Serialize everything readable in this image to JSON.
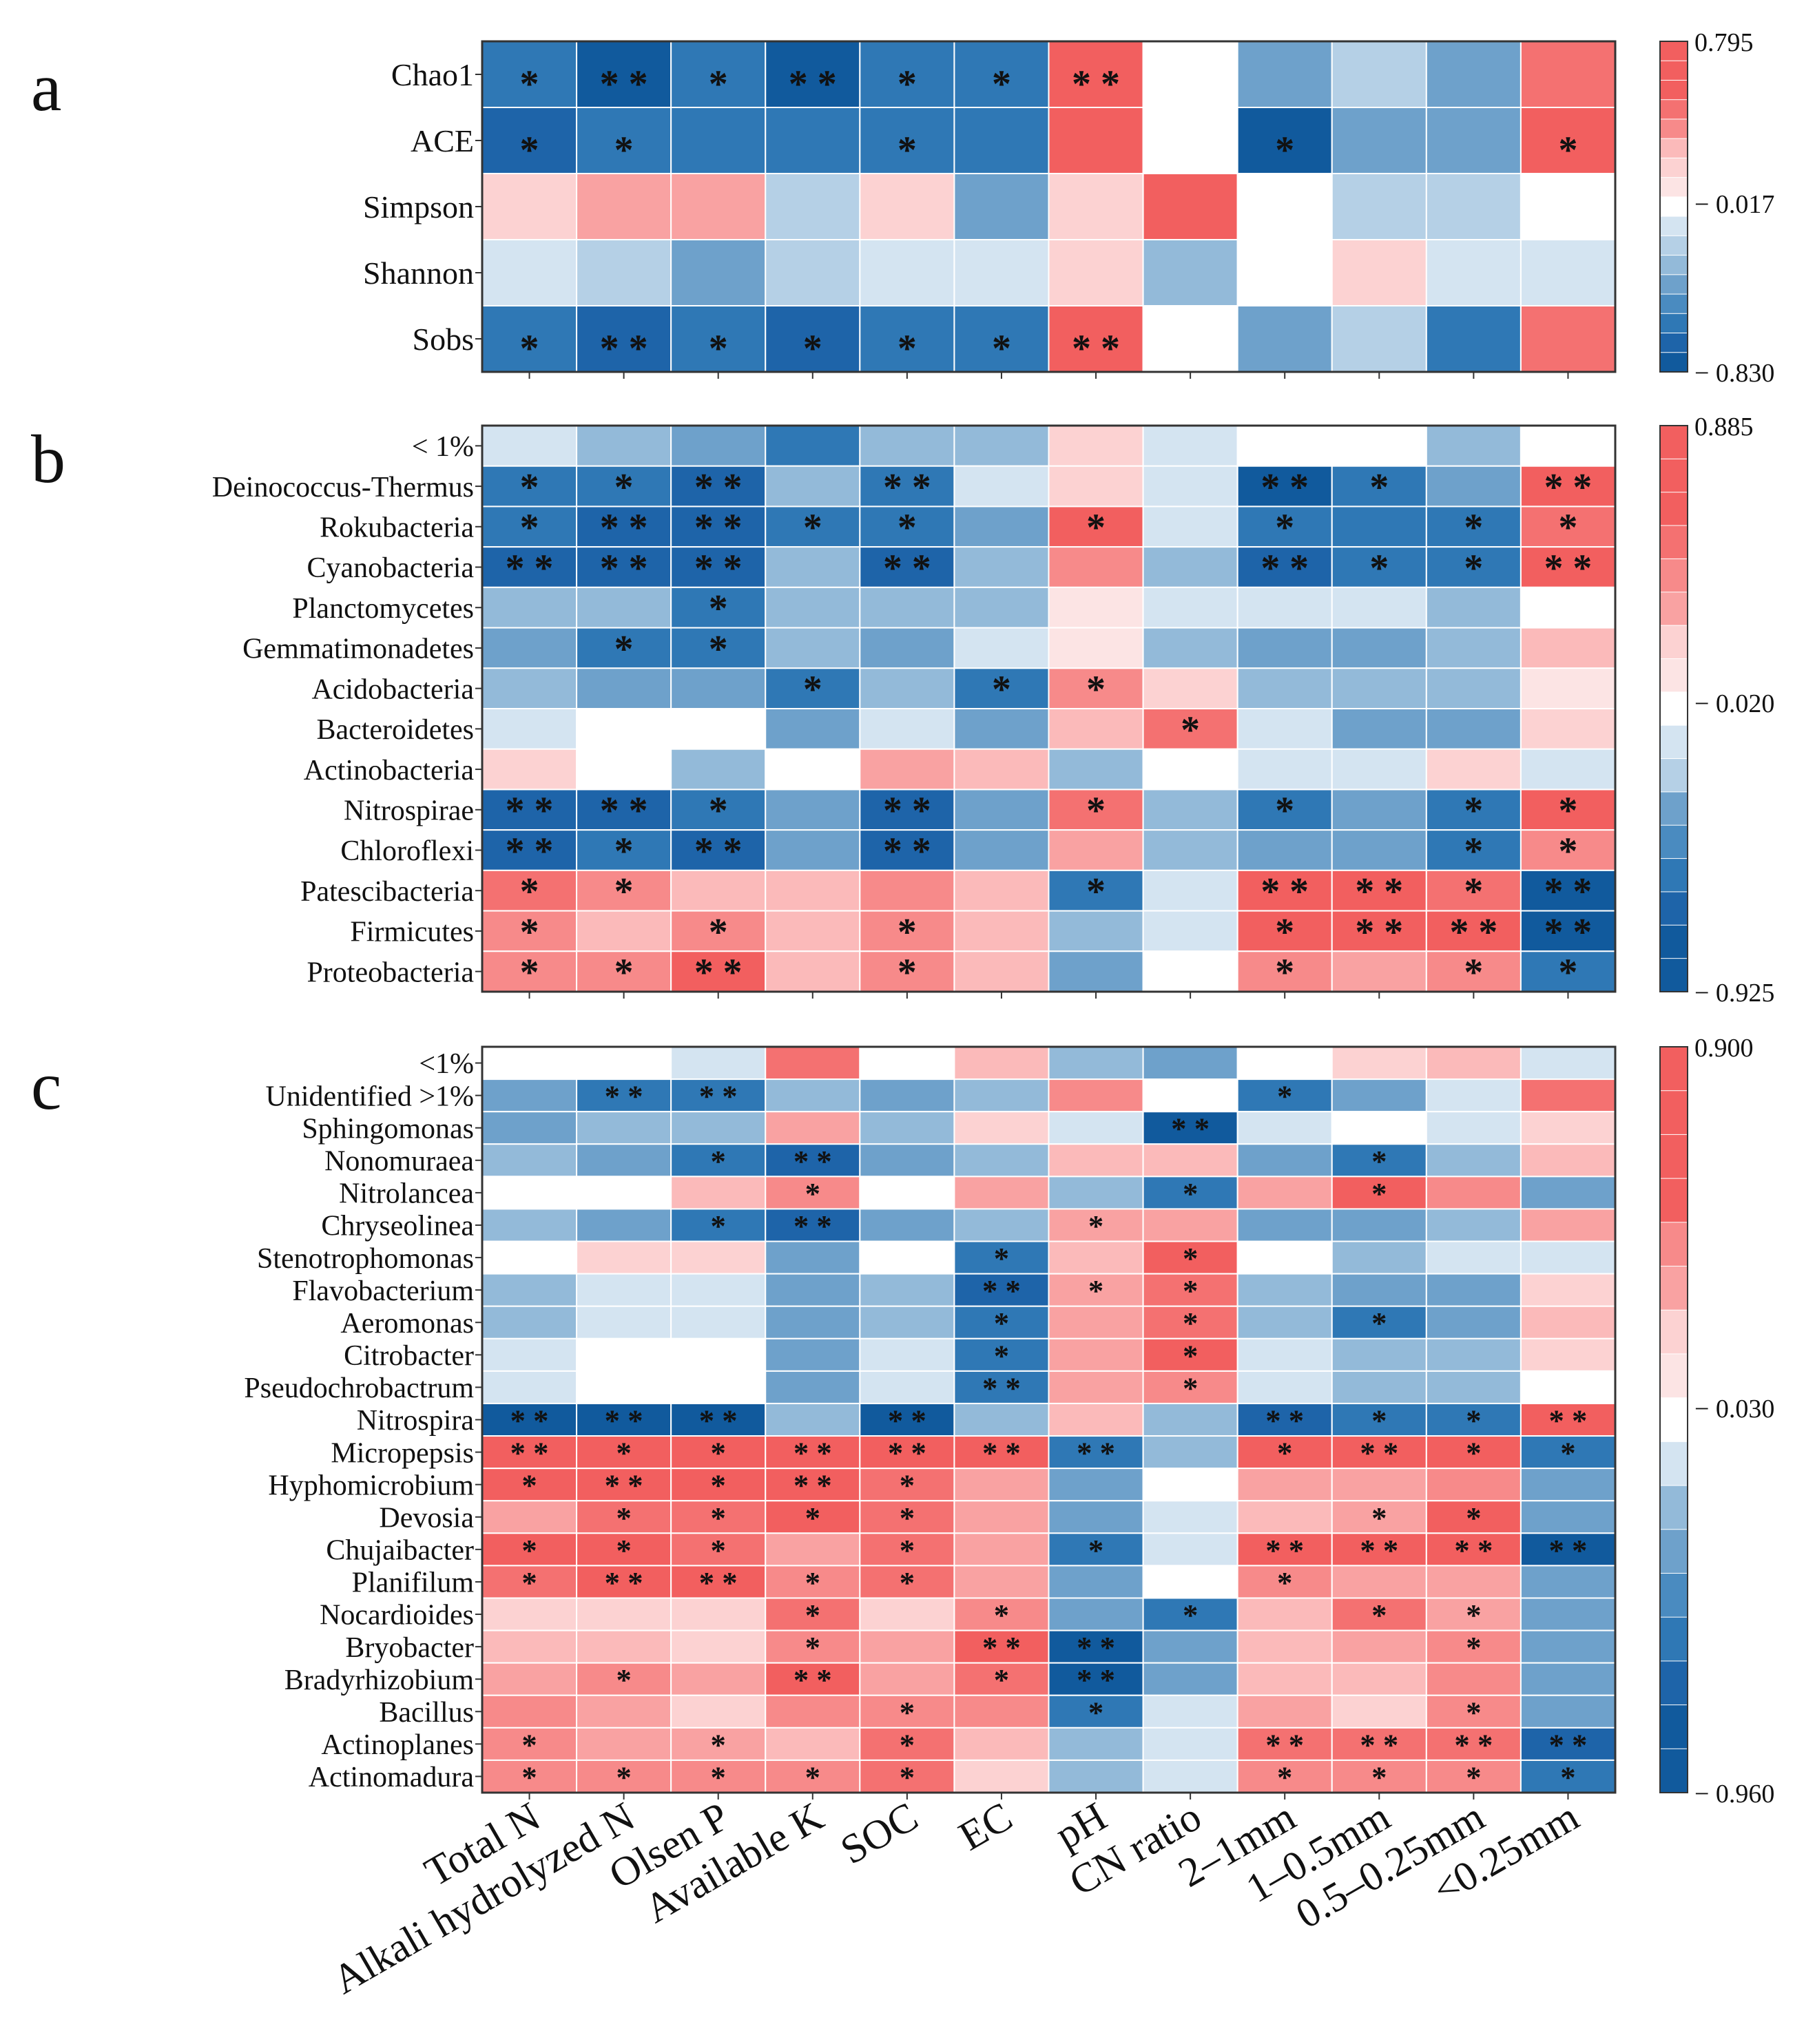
{
  "columns": [
    "Total N",
    "Alkali hydrolyzed N",
    "Olsen P",
    "Available K",
    "SOC",
    "EC",
    "pH",
    "CN ratio",
    "2–1mm",
    "1–0.5mm",
    "0.5–0.25mm",
    "<0.25mm"
  ],
  "palette": {
    "pos": [
      "#fce4e4",
      "#fcd2d2",
      "#fbbaba",
      "#f9a2a2",
      "#f78a8a",
      "#f47171",
      "#f25f5f"
    ],
    "neg": [
      "#d4e4f1",
      "#b5d0e6",
      "#93bad9",
      "#6ea1cb",
      "#4a8bc0",
      "#2f78b5",
      "#1e64a9",
      "#115a9d"
    ],
    "zero": "#ffffff"
  },
  "chart_data": [
    {
      "type": "heatmap",
      "panel_label": "a",
      "rows": [
        "Chao1",
        "ACE",
        "Simpson",
        "Shannon",
        "Sobs"
      ],
      "values": [
        [
          -0.62,
          -0.78,
          -0.62,
          -0.78,
          -0.62,
          -0.62,
          0.55,
          0.0,
          -0.4,
          -0.22,
          -0.4,
          0.45
        ],
        [
          -0.7,
          -0.55,
          -0.55,
          -0.55,
          -0.62,
          -0.55,
          0.62,
          0.0,
          -0.78,
          -0.4,
          -0.4,
          0.62
        ],
        [
          0.15,
          0.3,
          0.3,
          -0.22,
          0.15,
          -0.4,
          0.15,
          0.65,
          0.0,
          -0.22,
          -0.22,
          0.0
        ],
        [
          -0.08,
          -0.22,
          -0.4,
          -0.22,
          -0.08,
          -0.08,
          0.15,
          -0.3,
          0.0,
          0.15,
          -0.08,
          -0.08
        ],
        [
          -0.62,
          -0.7,
          -0.62,
          -0.7,
          -0.62,
          -0.62,
          0.62,
          0.0,
          -0.4,
          -0.22,
          -0.55,
          0.45
        ]
      ],
      "stars": [
        [
          "*",
          "**",
          "*",
          "**",
          "*",
          "*",
          "**",
          "",
          "",
          "",
          "",
          ""
        ],
        [
          "*",
          "*",
          "",
          "",
          "*",
          "",
          "",
          "",
          "*",
          "",
          "",
          "*"
        ],
        [
          "",
          "",
          "",
          "",
          "",
          "",
          "",
          "",
          "",
          "",
          "",
          ""
        ],
        [
          "",
          "",
          "",
          "",
          "",
          "",
          "",
          "",
          "",
          "",
          "",
          ""
        ],
        [
          "*",
          "**",
          "*",
          "*",
          "*",
          "*",
          "**",
          "",
          "",
          "",
          "",
          ""
        ]
      ],
      "legend": {
        "max_label": "0.795",
        "mid_label": "− 0.017",
        "min_label": "− 0.830",
        "max": 0.795,
        "min": -0.83
      }
    },
    {
      "type": "heatmap",
      "panel_label": "b",
      "rows": [
        "< 1%",
        "Deinococcus-Thermus",
        "Rokubacteria",
        "Cyanobacteria",
        "Planctomycetes",
        "Gemmatimonadetes",
        "Acidobacteria",
        "Bacteroidetes",
        "Actinobacteria",
        "Nitrospirae",
        "Chloroflexi",
        "Patescibacteria",
        "Firmicutes",
        "Proteobacteria"
      ],
      "values": [
        [
          -0.1,
          -0.25,
          -0.4,
          -0.55,
          -0.25,
          -0.25,
          0.15,
          -0.1,
          0.0,
          0.0,
          -0.25,
          0.0
        ],
        [
          -0.62,
          -0.62,
          -0.7,
          -0.25,
          -0.62,
          -0.1,
          0.15,
          -0.1,
          -0.78,
          -0.62,
          -0.4,
          0.55
        ],
        [
          -0.62,
          -0.7,
          -0.7,
          -0.55,
          -0.62,
          -0.4,
          0.55,
          -0.1,
          -0.62,
          -0.55,
          -0.62,
          0.45
        ],
        [
          -0.7,
          -0.7,
          -0.7,
          -0.25,
          -0.7,
          -0.25,
          0.4,
          -0.25,
          -0.7,
          -0.62,
          -0.62,
          0.55
        ],
        [
          -0.25,
          -0.25,
          -0.55,
          -0.25,
          -0.25,
          -0.25,
          0.1,
          -0.1,
          -0.1,
          -0.1,
          -0.25,
          0.0
        ],
        [
          -0.4,
          -0.55,
          -0.55,
          -0.25,
          -0.4,
          -0.1,
          0.1,
          -0.25,
          -0.4,
          -0.4,
          -0.25,
          0.25
        ],
        [
          -0.25,
          -0.4,
          -0.4,
          -0.55,
          -0.25,
          -0.62,
          0.4,
          0.15,
          -0.25,
          -0.25,
          -0.25,
          0.1
        ],
        [
          -0.1,
          0.0,
          0.0,
          -0.4,
          -0.1,
          -0.4,
          0.25,
          0.45,
          -0.1,
          -0.4,
          -0.4,
          0.15
        ],
        [
          0.15,
          0.0,
          -0.25,
          0.0,
          0.3,
          0.25,
          -0.25,
          0.0,
          -0.1,
          -0.1,
          0.15,
          -0.1
        ],
        [
          -0.7,
          -0.7,
          -0.62,
          -0.4,
          -0.7,
          -0.4,
          0.45,
          -0.25,
          -0.55,
          -0.4,
          -0.55,
          0.55
        ],
        [
          -0.7,
          -0.62,
          -0.7,
          -0.4,
          -0.7,
          -0.4,
          0.3,
          -0.25,
          -0.4,
          -0.4,
          -0.55,
          0.4
        ],
        [
          0.45,
          0.4,
          0.25,
          0.25,
          0.4,
          0.25,
          -0.55,
          -0.1,
          0.55,
          0.55,
          0.45,
          -0.78
        ],
        [
          0.4,
          0.25,
          0.4,
          0.25,
          0.4,
          0.25,
          -0.25,
          -0.1,
          0.55,
          0.55,
          0.55,
          -0.78
        ],
        [
          0.4,
          0.4,
          0.55,
          0.25,
          0.4,
          0.25,
          -0.4,
          0.0,
          0.4,
          0.3,
          0.4,
          -0.62
        ]
      ],
      "stars": [
        [
          "",
          "",
          "",
          "",
          "",
          "",
          "",
          "",
          "",
          "",
          "",
          ""
        ],
        [
          "*",
          "*",
          "**",
          "",
          "**",
          "",
          "",
          "",
          "**",
          "*",
          "",
          "**"
        ],
        [
          "*",
          "**",
          "**",
          "*",
          "*",
          "",
          "*",
          "",
          "*",
          "",
          "*",
          "*"
        ],
        [
          "**",
          "**",
          "**",
          "",
          "**",
          "",
          "",
          "",
          "**",
          "*",
          "*",
          "**"
        ],
        [
          "",
          "",
          "*",
          "",
          "",
          "",
          "",
          "",
          "",
          "",
          "",
          ""
        ],
        [
          "",
          "*",
          "*",
          "",
          "",
          "",
          "",
          "",
          "",
          "",
          "",
          ""
        ],
        [
          "",
          "",
          "",
          "*",
          "",
          "*",
          "*",
          "",
          "",
          "",
          "",
          ""
        ],
        [
          "",
          "",
          "",
          "",
          "",
          "",
          "",
          "*",
          "",
          "",
          "",
          ""
        ],
        [
          "",
          "",
          "",
          "",
          "",
          "",
          "",
          "",
          "",
          "",
          "",
          ""
        ],
        [
          "**",
          "**",
          "*",
          "",
          "**",
          "",
          "*",
          "",
          "*",
          "",
          "*",
          "*"
        ],
        [
          "**",
          "*",
          "**",
          "",
          "**",
          "",
          "",
          "",
          "",
          "",
          "*",
          "*"
        ],
        [
          "*",
          "*",
          "",
          "",
          "",
          "",
          "*",
          "",
          "**",
          "**",
          "*",
          "**"
        ],
        [
          "*",
          "",
          "*",
          "",
          "*",
          "",
          "",
          "",
          "*",
          "**",
          "**",
          "**"
        ],
        [
          "*",
          "*",
          "**",
          "",
          "*",
          "",
          "",
          "",
          "*",
          "",
          "*",
          "*"
        ]
      ],
      "legend": {
        "max_label": "0.885",
        "mid_label": "− 0.020",
        "min_label": "− 0.925",
        "max": 0.885,
        "min": -0.925
      }
    },
    {
      "type": "heatmap",
      "panel_label": "c",
      "rows": [
        "<1%",
        "Unidentified >1%",
        "Sphingomonas",
        "Nonomuraea",
        "Nitrolancea",
        "Chryseolinea",
        "Stenotrophomonas",
        "Flavobacterium",
        "Aeromonas",
        "Citrobacter",
        "Pseudochrobactrum",
        "Nitrospira",
        "Micropepsis",
        "Hyphomicrobium",
        "Devosia",
        "Chujaibacter",
        "Planifilum",
        "Nocardioides",
        "Bryobacter",
        "Bradyrhizobium",
        "Bacillus",
        "Actinoplanes",
        "Actinomadura"
      ],
      "values": [
        [
          0.0,
          0.0,
          -0.1,
          0.45,
          0.0,
          0.25,
          -0.25,
          -0.4,
          0.0,
          0.15,
          0.25,
          -0.1
        ],
        [
          -0.4,
          -0.62,
          -0.62,
          -0.25,
          -0.4,
          -0.25,
          0.4,
          0.0,
          -0.55,
          -0.4,
          -0.1,
          0.45
        ],
        [
          -0.4,
          -0.25,
          -0.25,
          0.3,
          -0.25,
          0.15,
          -0.1,
          -0.78,
          -0.1,
          0.0,
          -0.1,
          0.15
        ],
        [
          -0.25,
          -0.4,
          -0.55,
          -0.7,
          -0.4,
          -0.25,
          0.25,
          0.25,
          -0.4,
          -0.55,
          -0.25,
          0.25
        ],
        [
          0.0,
          0.0,
          0.25,
          0.4,
          0.0,
          0.3,
          -0.25,
          -0.55,
          0.3,
          0.55,
          0.4,
          -0.4
        ],
        [
          -0.25,
          -0.4,
          -0.55,
          -0.7,
          -0.4,
          -0.25,
          0.3,
          0.3,
          -0.4,
          -0.4,
          -0.25,
          0.3
        ],
        [
          0.0,
          0.15,
          0.15,
          -0.4,
          0.0,
          -0.62,
          0.25,
          0.55,
          0.0,
          -0.25,
          -0.1,
          -0.1
        ],
        [
          -0.25,
          -0.1,
          -0.1,
          -0.4,
          -0.25,
          -0.7,
          0.3,
          0.45,
          -0.25,
          -0.4,
          -0.4,
          0.15
        ],
        [
          -0.25,
          -0.1,
          -0.1,
          -0.4,
          -0.25,
          -0.62,
          0.3,
          0.45,
          -0.25,
          -0.55,
          -0.4,
          0.25
        ],
        [
          -0.1,
          0.0,
          0.0,
          -0.4,
          -0.1,
          -0.62,
          0.3,
          0.55,
          -0.1,
          -0.25,
          -0.25,
          0.15
        ],
        [
          -0.1,
          0.0,
          0.0,
          -0.4,
          -0.1,
          -0.62,
          0.3,
          0.4,
          -0.1,
          -0.25,
          -0.25,
          0.0
        ],
        [
          -0.78,
          -0.78,
          -0.78,
          -0.25,
          -0.78,
          -0.25,
          0.25,
          -0.25,
          -0.7,
          -0.62,
          -0.62,
          0.55
        ],
        [
          0.55,
          0.55,
          0.55,
          0.55,
          0.55,
          0.55,
          -0.62,
          -0.25,
          0.55,
          0.55,
          0.55,
          -0.62
        ],
        [
          0.55,
          0.55,
          0.55,
          0.55,
          0.45,
          0.3,
          -0.4,
          0.0,
          0.3,
          0.3,
          0.4,
          -0.4
        ],
        [
          0.3,
          0.45,
          0.45,
          0.55,
          0.45,
          0.3,
          -0.4,
          -0.1,
          0.25,
          0.3,
          0.55,
          -0.4
        ],
        [
          0.55,
          0.55,
          0.45,
          0.3,
          0.45,
          0.3,
          -0.55,
          -0.1,
          0.55,
          0.55,
          0.55,
          -0.78
        ],
        [
          0.45,
          0.55,
          0.55,
          0.4,
          0.45,
          0.3,
          -0.4,
          0.0,
          0.4,
          0.3,
          0.3,
          -0.4
        ],
        [
          0.15,
          0.15,
          0.15,
          0.45,
          0.15,
          0.4,
          -0.4,
          -0.62,
          0.25,
          0.45,
          0.3,
          -0.4
        ],
        [
          0.25,
          0.25,
          0.15,
          0.4,
          0.3,
          0.55,
          -0.78,
          -0.4,
          0.25,
          0.3,
          0.4,
          -0.4
        ],
        [
          0.3,
          0.4,
          0.3,
          0.55,
          0.3,
          0.45,
          -0.78,
          -0.4,
          0.25,
          0.25,
          0.4,
          -0.4
        ],
        [
          0.4,
          0.3,
          0.15,
          0.4,
          0.4,
          0.4,
          -0.55,
          -0.1,
          0.3,
          0.15,
          0.4,
          -0.4
        ],
        [
          0.4,
          0.3,
          0.3,
          0.25,
          0.45,
          0.25,
          -0.25,
          -0.1,
          0.45,
          0.45,
          0.45,
          -0.7
        ],
        [
          0.4,
          0.4,
          0.4,
          0.4,
          0.45,
          0.15,
          -0.25,
          -0.1,
          0.4,
          0.4,
          0.4,
          -0.62
        ]
      ],
      "stars": [
        [
          "",
          "",
          "",
          "",
          "",
          "",
          "",
          "",
          "",
          "",
          "",
          ""
        ],
        [
          "",
          "**",
          "**",
          "",
          "",
          "",
          "",
          "",
          "*",
          "",
          "",
          ""
        ],
        [
          "",
          "",
          "",
          "",
          "",
          "",
          "",
          "**",
          "",
          "",
          "",
          ""
        ],
        [
          "",
          "",
          "*",
          "**",
          "",
          "",
          "",
          "",
          "",
          "*",
          "",
          ""
        ],
        [
          "",
          "",
          "",
          "*",
          "",
          "",
          "",
          "*",
          "",
          "*",
          "",
          ""
        ],
        [
          "",
          "",
          "*",
          "**",
          "",
          "",
          "*",
          "",
          "",
          "",
          "",
          ""
        ],
        [
          "",
          "",
          "",
          "",
          "",
          "*",
          "",
          "*",
          "",
          "",
          "",
          ""
        ],
        [
          "",
          "",
          "",
          "",
          "",
          "**",
          "*",
          "*",
          "",
          "",
          "",
          ""
        ],
        [
          "",
          "",
          "",
          "",
          "",
          "*",
          "",
          "*",
          "",
          "*",
          "",
          ""
        ],
        [
          "",
          "",
          "",
          "",
          "",
          "*",
          "",
          "*",
          "",
          "",
          "",
          ""
        ],
        [
          "",
          "",
          "",
          "",
          "",
          "**",
          "",
          "*",
          "",
          "",
          "",
          ""
        ],
        [
          "**",
          "**",
          "**",
          "",
          "**",
          "",
          "",
          "",
          "**",
          "*",
          "*",
          "**"
        ],
        [
          "**",
          "*",
          "*",
          "**",
          "**",
          "**",
          "**",
          "",
          "*",
          "**",
          "*",
          "*"
        ],
        [
          "*",
          "**",
          "*",
          "**",
          "*",
          "",
          "",
          "",
          "",
          "",
          "",
          ""
        ],
        [
          "",
          "*",
          "*",
          "*",
          "*",
          "",
          "",
          "",
          "",
          "*",
          "*",
          ""
        ],
        [
          "*",
          "*",
          "*",
          "",
          "*",
          "",
          "*",
          "",
          "**",
          "**",
          "**",
          "**"
        ],
        [
          "*",
          "**",
          "**",
          "*",
          "*",
          "",
          "",
          "",
          "*",
          "",
          "",
          ""
        ],
        [
          "",
          "",
          "",
          "*",
          "",
          "*",
          "",
          "*",
          "",
          "*",
          "*",
          ""
        ],
        [
          "",
          "",
          "",
          "*",
          "",
          "**",
          "**",
          "",
          "",
          "",
          "*",
          ""
        ],
        [
          "",
          "*",
          "",
          "**",
          "",
          "*",
          "**",
          "",
          "",
          "",
          "",
          ""
        ],
        [
          "",
          "",
          "",
          "",
          "*",
          "",
          "*",
          "",
          "",
          "",
          "*",
          ""
        ],
        [
          "*",
          "",
          "*",
          "",
          "*",
          "",
          "",
          "",
          "**",
          "**",
          "**",
          "**"
        ],
        [
          "*",
          "*",
          "*",
          "*",
          "*",
          "",
          "",
          "",
          "*",
          "*",
          "*",
          "*"
        ]
      ],
      "legend": {
        "max_label": "0.900",
        "mid_label": "− 0.030",
        "min_label": "− 0.960",
        "max": 0.9,
        "min": -0.96
      }
    }
  ]
}
